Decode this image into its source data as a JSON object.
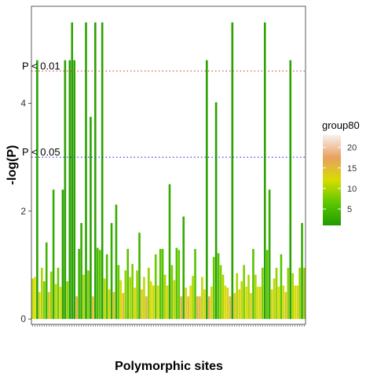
{
  "chart_data": {
    "type": "bar",
    "xlabel": "Polymorphic sites",
    "ylabel": "-log(P)",
    "ylim": [
      -0.1,
      5.8
    ],
    "yticks": [
      0,
      2,
      4
    ],
    "grid": false,
    "legend": {
      "title": "group80",
      "position": "right",
      "ticks": [
        5,
        10,
        15,
        20
      ],
      "range": [
        1,
        23
      ],
      "colors": [
        "#1f9a00",
        "#5cc800",
        "#d8dc00",
        "#e8a060",
        "#f8f0f0"
      ]
    },
    "thresholds": [
      {
        "label": "P < 0.01",
        "value": 4.6,
        "color": "#e0302a"
      },
      {
        "label": "P < 0.05",
        "value": 3.0,
        "color": "#2a2ad8"
      }
    ],
    "bars": [
      {
        "v": 0.75,
        "g": 11
      },
      {
        "v": 0.78,
        "g": 12
      },
      {
        "v": 4.8,
        "g": 2
      },
      {
        "v": 0.5,
        "g": 13
      },
      {
        "v": 0.95,
        "g": 10
      },
      {
        "v": 0.7,
        "g": 8
      },
      {
        "v": 1.42,
        "g": 4
      },
      {
        "v": 0.5,
        "g": 14
      },
      {
        "v": 0.88,
        "g": 9
      },
      {
        "v": 2.4,
        "g": 3
      },
      {
        "v": 0.65,
        "g": 11
      },
      {
        "v": 0.95,
        "g": 7
      },
      {
        "v": 0.6,
        "g": 12
      },
      {
        "v": 2.4,
        "g": 2
      },
      {
        "v": 4.8,
        "g": 2
      },
      {
        "v": 0.7,
        "g": 9
      },
      {
        "v": 4.8,
        "g": 2
      },
      {
        "v": 5.5,
        "g": 2
      },
      {
        "v": 4.8,
        "g": 2
      },
      {
        "v": 0.42,
        "g": 16
      },
      {
        "v": 1.3,
        "g": 4
      },
      {
        "v": 1.78,
        "g": 3
      },
      {
        "v": 0.82,
        "g": 10
      },
      {
        "v": 5.5,
        "g": 2
      },
      {
        "v": 0.9,
        "g": 8
      },
      {
        "v": 3.75,
        "g": 2
      },
      {
        "v": 0.42,
        "g": 15
      },
      {
        "v": 5.5,
        "g": 2
      },
      {
        "v": 1.32,
        "g": 5
      },
      {
        "v": 1.28,
        "g": 6
      },
      {
        "v": 5.5,
        "g": 2
      },
      {
        "v": 0.75,
        "g": 11
      },
      {
        "v": 1.2,
        "g": 5
      },
      {
        "v": 0.55,
        "g": 13
      },
      {
        "v": 1.78,
        "g": 3
      },
      {
        "v": 0.5,
        "g": 14
      },
      {
        "v": 2.12,
        "g": 3
      },
      {
        "v": 1.0,
        "g": 7
      },
      {
        "v": 0.72,
        "g": 12
      },
      {
        "v": 0.48,
        "g": 15
      },
      {
        "v": 0.9,
        "g": 9
      },
      {
        "v": 1.3,
        "g": 6
      },
      {
        "v": 0.78,
        "g": 10
      },
      {
        "v": 1.02,
        "g": 8
      },
      {
        "v": 0.58,
        "g": 13
      },
      {
        "v": 0.9,
        "g": 9
      },
      {
        "v": 1.6,
        "g": 4
      },
      {
        "v": 0.55,
        "g": 14
      },
      {
        "v": 0.78,
        "g": 11
      },
      {
        "v": 0.42,
        "g": 16
      },
      {
        "v": 0.95,
        "g": 9
      },
      {
        "v": 0.7,
        "g": 12
      },
      {
        "v": 0.62,
        "g": 13
      },
      {
        "v": 1.2,
        "g": 7
      },
      {
        "v": 0.62,
        "g": 12
      },
      {
        "v": 1.3,
        "g": 6
      },
      {
        "v": 1.3,
        "g": 6
      },
      {
        "v": 0.82,
        "g": 10
      },
      {
        "v": 0.62,
        "g": 13
      },
      {
        "v": 2.5,
        "g": 3
      },
      {
        "v": 1.0,
        "g": 8
      },
      {
        "v": 0.72,
        "g": 11
      },
      {
        "v": 1.32,
        "g": 6
      },
      {
        "v": 1.28,
        "g": 7
      },
      {
        "v": 0.42,
        "g": 16
      },
      {
        "v": 1.9,
        "g": 3
      },
      {
        "v": 0.58,
        "g": 13
      },
      {
        "v": 0.42,
        "g": 15
      },
      {
        "v": 0.62,
        "g": 12
      },
      {
        "v": 0.8,
        "g": 10
      },
      {
        "v": 1.3,
        "g": 6
      },
      {
        "v": 0.42,
        "g": 16
      },
      {
        "v": 0.42,
        "g": 15
      },
      {
        "v": 0.78,
        "g": 11
      },
      {
        "v": 0.55,
        "g": 13
      },
      {
        "v": 4.8,
        "g": 2
      },
      {
        "v": 0.42,
        "g": 16
      },
      {
        "v": 0.6,
        "g": 13
      },
      {
        "v": 1.15,
        "g": 7
      },
      {
        "v": 4.02,
        "g": 2
      },
      {
        "v": 1.22,
        "g": 6
      },
      {
        "v": 1.0,
        "g": 8
      },
      {
        "v": 0.82,
        "g": 10
      },
      {
        "v": 0.62,
        "g": 12
      },
      {
        "v": 0.58,
        "g": 13
      },
      {
        "v": 0.42,
        "g": 15
      },
      {
        "v": 5.5,
        "g": 2
      },
      {
        "v": 0.48,
        "g": 14
      },
      {
        "v": 0.85,
        "g": 10
      },
      {
        "v": 0.55,
        "g": 13
      },
      {
        "v": 0.7,
        "g": 11
      },
      {
        "v": 1.0,
        "g": 8
      },
      {
        "v": 0.6,
        "g": 12
      },
      {
        "v": 0.82,
        "g": 10
      },
      {
        "v": 0.48,
        "g": 14
      },
      {
        "v": 1.3,
        "g": 6
      },
      {
        "v": 0.82,
        "g": 10
      },
      {
        "v": 0.6,
        "g": 12
      },
      {
        "v": 0.6,
        "g": 13
      },
      {
        "v": 0.95,
        "g": 8
      },
      {
        "v": 5.5,
        "g": 2
      },
      {
        "v": 1.28,
        "g": 6
      },
      {
        "v": 2.4,
        "g": 3
      },
      {
        "v": 0.55,
        "g": 13
      },
      {
        "v": 0.75,
        "g": 11
      },
      {
        "v": 0.95,
        "g": 9
      },
      {
        "v": 0.6,
        "g": 12
      },
      {
        "v": 1.2,
        "g": 6
      },
      {
        "v": 0.62,
        "g": 12
      },
      {
        "v": 0.5,
        "g": 14
      },
      {
        "v": 0.95,
        "g": 9
      },
      {
        "v": 4.8,
        "g": 2
      },
      {
        "v": 0.85,
        "g": 10
      },
      {
        "v": 0.62,
        "g": 12
      },
      {
        "v": 0.62,
        "g": 13
      },
      {
        "v": 0.95,
        "g": 9
      },
      {
        "v": 1.78,
        "g": 3
      },
      {
        "v": 0.95,
        "g": 9
      }
    ]
  }
}
